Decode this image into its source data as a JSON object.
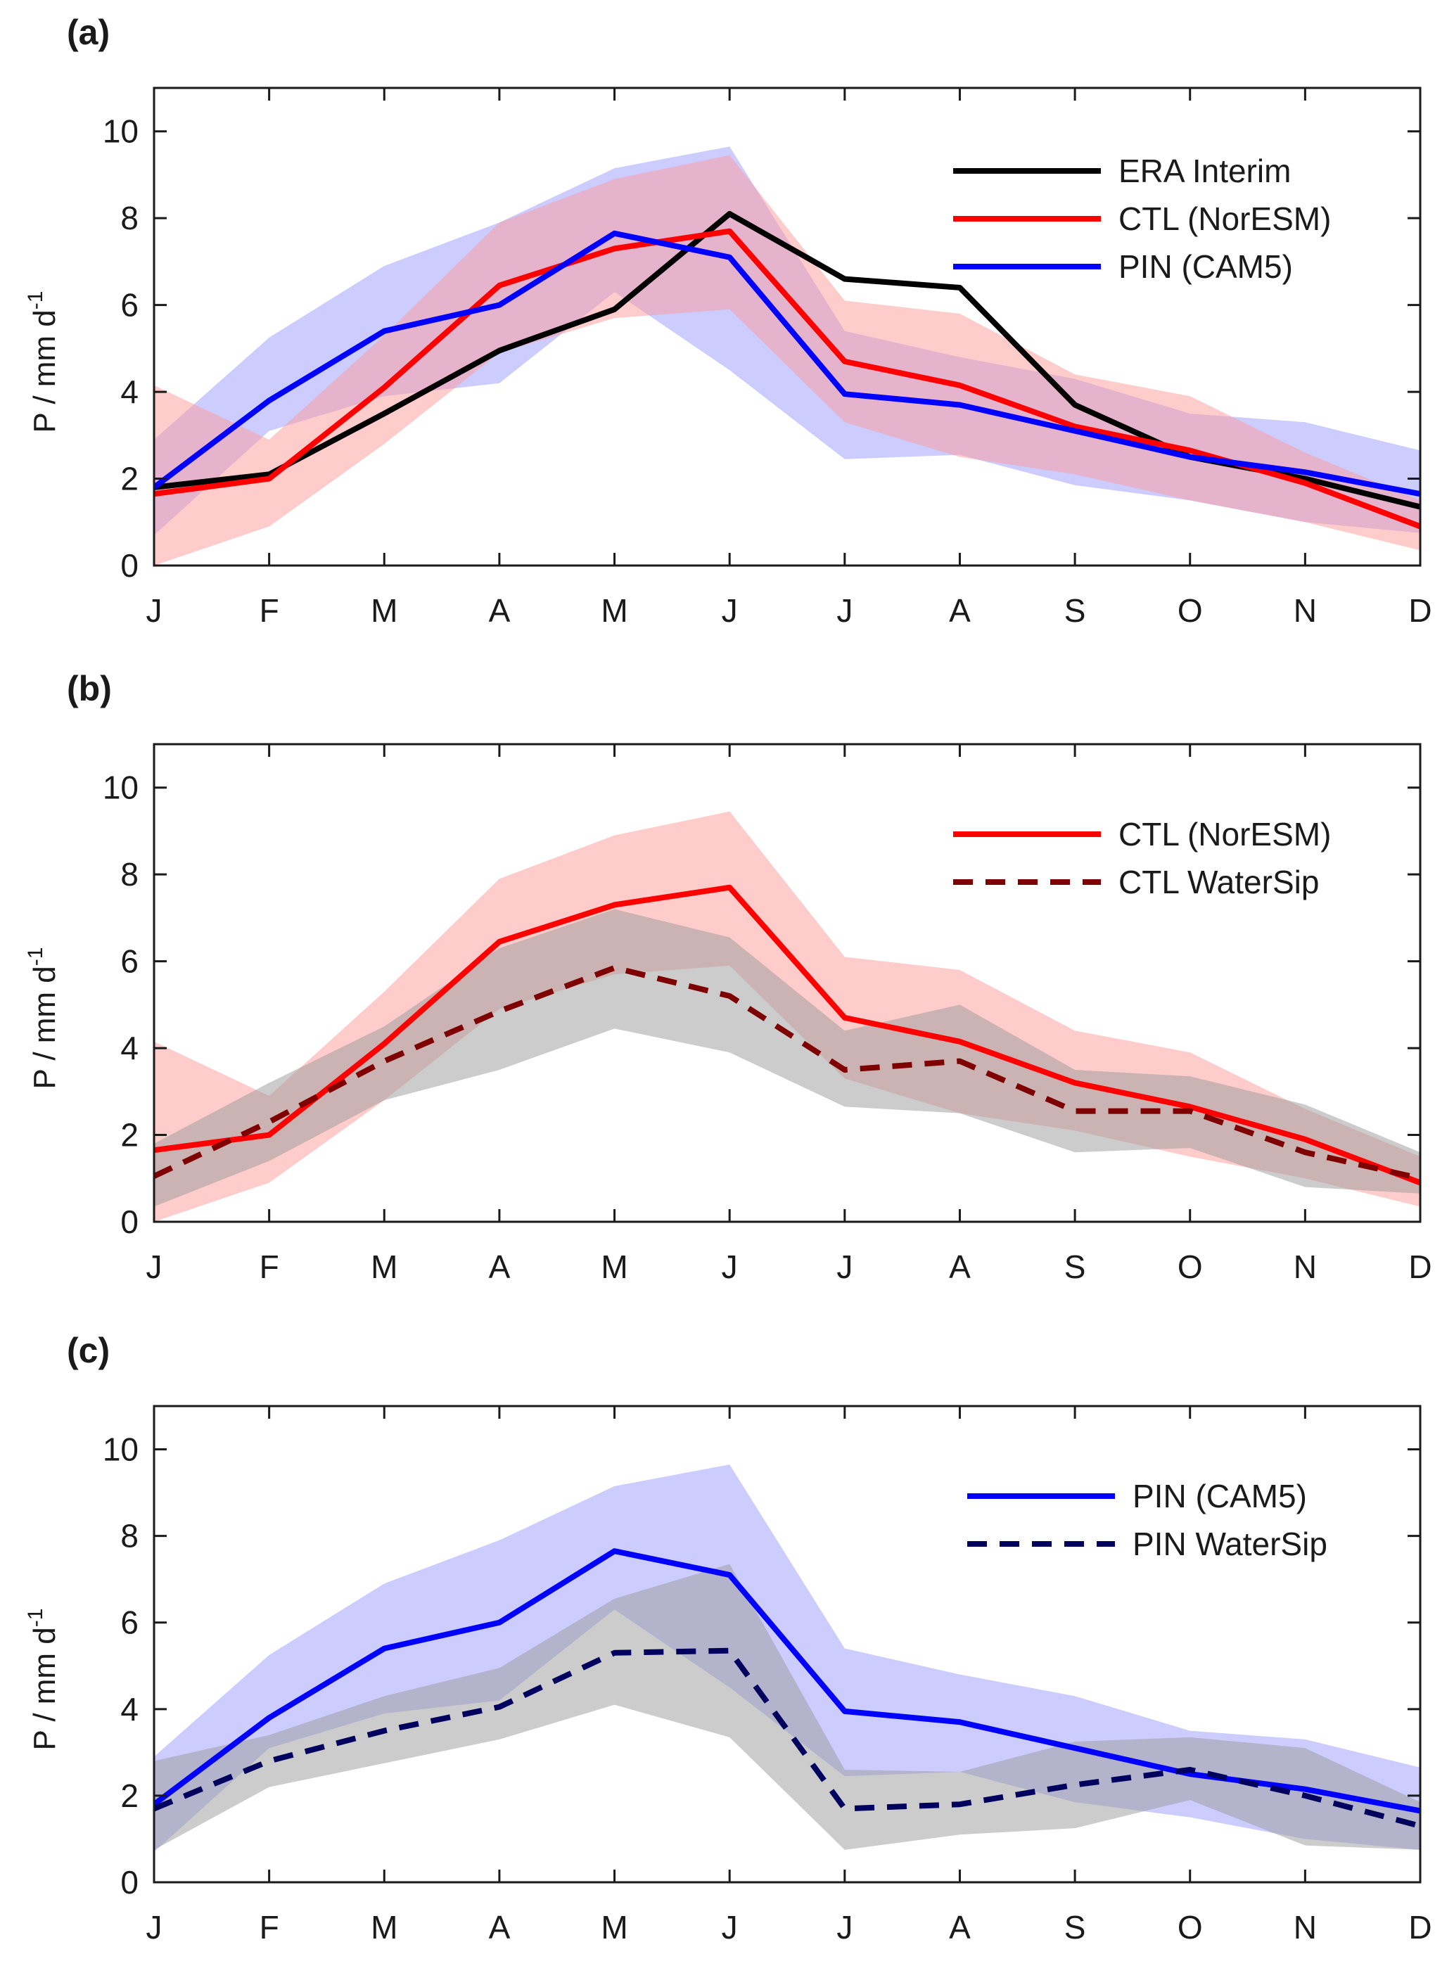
{
  "chart_data": [
    {
      "type": "line",
      "panel_label": "(a)",
      "ylabel": "P / mm d",
      "ylabel_sup": "-1",
      "xlabel": "",
      "categories": [
        "J",
        "F",
        "M",
        "A",
        "M",
        "J",
        "J",
        "A",
        "S",
        "O",
        "N",
        "D"
      ],
      "ylim": [
        0,
        11
      ],
      "yticks": [
        0,
        2,
        4,
        6,
        8,
        10
      ],
      "grid": false,
      "legend_position": "top-right",
      "bands": [
        {
          "name": "PIN (CAM5) range",
          "color": "#9999ff",
          "upper": [
            2.9,
            5.25,
            6.9,
            7.9,
            9.15,
            9.65,
            5.4,
            4.8,
            4.3,
            3.5,
            3.3,
            2.65
          ],
          "lower": [
            0.7,
            3.1,
            3.9,
            4.2,
            6.3,
            4.5,
            2.45,
            2.55,
            1.85,
            1.5,
            1.0,
            0.75
          ]
        },
        {
          "name": "CTL (NorESM) range",
          "color": "#ff9999",
          "upper": [
            4.15,
            2.9,
            5.3,
            7.9,
            8.9,
            9.45,
            6.1,
            5.8,
            4.4,
            3.9,
            2.6,
            1.5
          ],
          "lower": [
            -0.5,
            0.9,
            2.8,
            4.9,
            5.7,
            5.9,
            3.3,
            2.5,
            2.1,
            1.5,
            1.0,
            0.35
          ]
        }
      ],
      "series": [
        {
          "name": "ERA Interim",
          "color": "#000000",
          "dash": false,
          "values": [
            1.8,
            2.1,
            3.5,
            4.95,
            5.9,
            8.1,
            6.6,
            6.4,
            3.7,
            2.5,
            2.0,
            1.35
          ]
        },
        {
          "name": "CTL (NorESM)",
          "color": "#ff0000",
          "dash": false,
          "values": [
            1.65,
            2.0,
            4.1,
            6.45,
            7.3,
            7.7,
            4.7,
            4.15,
            3.2,
            2.65,
            1.9,
            0.9
          ]
        },
        {
          "name": "PIN (CAM5)",
          "color": "#0000ff",
          "dash": false,
          "values": [
            1.8,
            3.8,
            5.4,
            6.0,
            7.65,
            7.1,
            3.95,
            3.7,
            3.1,
            2.5,
            2.15,
            1.65
          ]
        }
      ]
    },
    {
      "type": "line",
      "panel_label": "(b)",
      "ylabel": "P / mm d",
      "ylabel_sup": "-1",
      "xlabel": "",
      "categories": [
        "J",
        "F",
        "M",
        "A",
        "M",
        "J",
        "J",
        "A",
        "S",
        "O",
        "N",
        "D"
      ],
      "ylim": [
        0,
        11
      ],
      "yticks": [
        0,
        2,
        4,
        6,
        8,
        10
      ],
      "grid": false,
      "legend_position": "top-right",
      "bands": [
        {
          "name": "CTL (NorESM) range",
          "color": "#ff9999",
          "upper": [
            4.15,
            2.9,
            5.3,
            7.9,
            8.9,
            9.45,
            6.1,
            5.8,
            4.4,
            3.9,
            2.6,
            1.5
          ],
          "lower": [
            -0.5,
            0.9,
            2.8,
            4.9,
            5.7,
            5.9,
            3.3,
            2.5,
            2.1,
            1.5,
            1.0,
            0.35
          ]
        },
        {
          "name": "CTL WaterSip range",
          "color": "#999999",
          "upper": [
            1.8,
            3.2,
            4.5,
            6.3,
            7.2,
            6.55,
            4.4,
            5.0,
            3.5,
            3.35,
            2.7,
            1.6
          ],
          "lower": [
            0.35,
            1.4,
            2.8,
            3.5,
            4.45,
            3.9,
            2.65,
            2.5,
            1.6,
            1.7,
            0.8,
            0.65
          ]
        }
      ],
      "series": [
        {
          "name": "CTL (NorESM)",
          "color": "#ff0000",
          "dash": false,
          "values": [
            1.65,
            2.0,
            4.1,
            6.45,
            7.3,
            7.7,
            4.7,
            4.15,
            3.2,
            2.65,
            1.9,
            0.9
          ]
        },
        {
          "name": "CTL WaterSip",
          "color": "#7f0000",
          "dash": true,
          "values": [
            1.05,
            2.3,
            3.7,
            4.85,
            5.85,
            5.2,
            3.5,
            3.7,
            2.55,
            2.55,
            1.6,
            1.0
          ]
        }
      ]
    },
    {
      "type": "line",
      "panel_label": "(c)",
      "ylabel": "P / mm d",
      "ylabel_sup": "-1",
      "xlabel": "",
      "categories": [
        "J",
        "F",
        "M",
        "A",
        "M",
        "J",
        "J",
        "A",
        "S",
        "O",
        "N",
        "D"
      ],
      "ylim": [
        0,
        11
      ],
      "yticks": [
        0,
        2,
        4,
        6,
        8,
        10
      ],
      "grid": false,
      "legend_position": "top-right",
      "bands": [
        {
          "name": "PIN (CAM5) range",
          "color": "#9999ff",
          "upper": [
            2.9,
            5.25,
            6.9,
            7.9,
            9.15,
            9.65,
            5.4,
            4.8,
            4.3,
            3.5,
            3.3,
            2.65
          ],
          "lower": [
            0.7,
            3.1,
            3.9,
            4.2,
            6.3,
            4.5,
            2.45,
            2.55,
            1.85,
            1.5,
            1.0,
            0.75
          ]
        },
        {
          "name": "PIN WaterSip range",
          "color": "#999999",
          "upper": [
            2.8,
            3.4,
            4.3,
            4.95,
            6.55,
            7.35,
            2.6,
            2.55,
            3.25,
            3.35,
            3.1,
            1.85
          ],
          "lower": [
            0.75,
            2.2,
            2.75,
            3.3,
            4.1,
            3.35,
            0.75,
            1.1,
            1.25,
            1.9,
            0.85,
            0.75
          ]
        }
      ],
      "series": [
        {
          "name": "PIN (CAM5)",
          "color": "#0000ff",
          "dash": false,
          "values": [
            1.8,
            3.8,
            5.4,
            6.0,
            7.65,
            7.1,
            3.95,
            3.7,
            3.1,
            2.5,
            2.15,
            1.65
          ]
        },
        {
          "name": "PIN WaterSip",
          "color": "#00005f",
          "dash": true,
          "values": [
            1.7,
            2.8,
            3.5,
            4.05,
            5.3,
            5.35,
            1.7,
            1.8,
            2.25,
            2.6,
            2.0,
            1.3
          ]
        }
      ]
    }
  ]
}
